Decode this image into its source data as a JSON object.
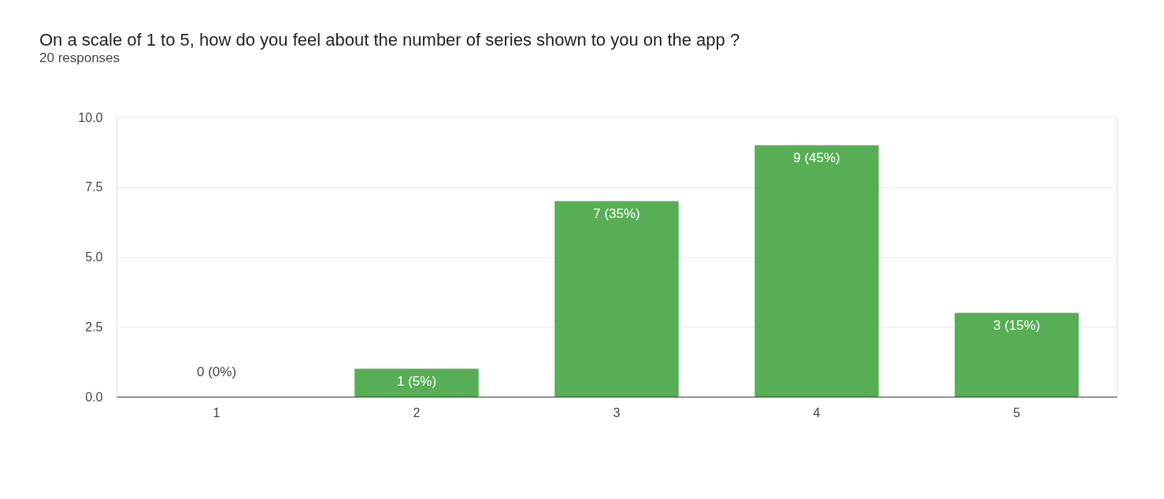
{
  "chart_data": {
    "type": "bar",
    "title": "On a scale of 1 to 5, how do you feel about the number of series shown to you on the app ?",
    "subtitle": "20 responses",
    "categories": [
      "1",
      "2",
      "3",
      "4",
      "5"
    ],
    "values": [
      0,
      1,
      7,
      9,
      3
    ],
    "value_labels": [
      "0 (0%)",
      "1 (5%)",
      "7 (35%)",
      "9 (45%)",
      "3 (15%)"
    ],
    "color": "#57ae55",
    "ylim": [
      0,
      10
    ],
    "yticks": [
      {
        "value": 0,
        "label": "0.0"
      },
      {
        "value": 2.5,
        "label": "2.5"
      },
      {
        "value": 5,
        "label": "5.0"
      },
      {
        "value": 7.5,
        "label": "7.5"
      },
      {
        "value": 10,
        "label": "10.0"
      }
    ],
    "grid": "y"
  }
}
